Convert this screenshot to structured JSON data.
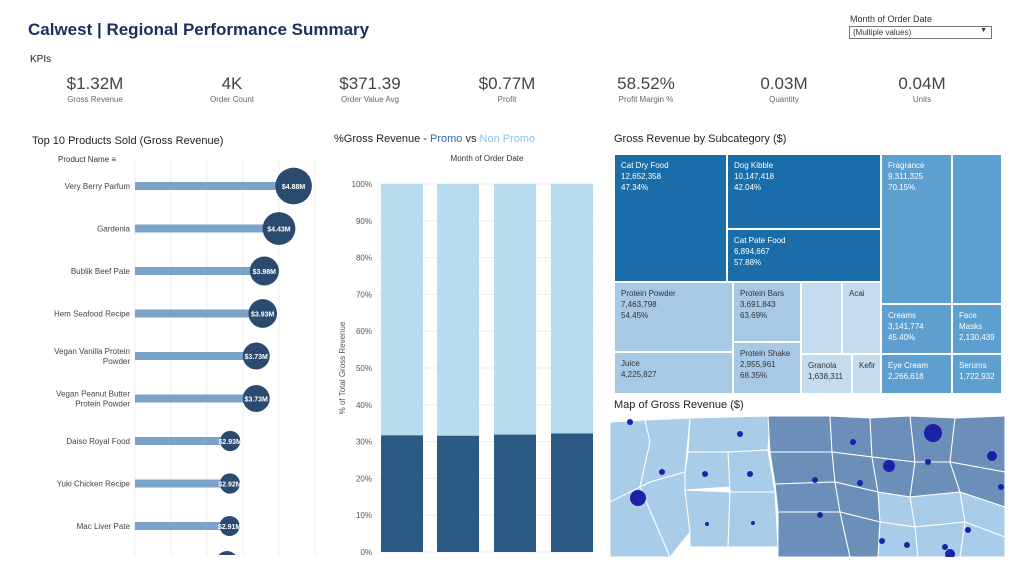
{
  "header": {
    "title": "Calwest | Regional Performance Summary",
    "filter_label": "Month of Order Date",
    "filter_value": "(Multiple values)",
    "kpis_heading": "KPIs"
  },
  "kpis": [
    {
      "value": "$1.32M",
      "label": "Gross Revenue"
    },
    {
      "value": "4K",
      "label": "Order Count"
    },
    {
      "value": "$371.39",
      "label": "Order Value Avg"
    },
    {
      "value": "$0.77M",
      "label": "Profit"
    },
    {
      "value": "58.52%",
      "label": "Profit Margin %"
    },
    {
      "value": "0.03M",
      "label": "Quantity"
    },
    {
      "value": "0.04M",
      "label": "Units"
    }
  ],
  "top_products": {
    "title": "Top 10 Products Sold (Gross Revenue)",
    "column_header": "Product Name",
    "colors": {
      "bar": "#7ba2c9",
      "dot": "#2b4a6f"
    },
    "chart_data": {
      "type": "bar",
      "orientation": "horizontal",
      "categories": [
        "Very Berry Parfum",
        "Gardenia",
        "Bublik Beef Pate",
        "Hem Seafood Recipe",
        "Vegan Vanilla Protein Powder",
        "Vegan Peanut Butter Protein Powder",
        "Daiso Royal Food",
        "Yuki Chicken Recipe",
        "Mac Liver Pate"
      ],
      "display_lines": [
        [
          "Very Berry Parfum"
        ],
        [
          "Gardenia"
        ],
        [
          "Bublik Beef Pate"
        ],
        [
          "Hem Seafood Recipe"
        ],
        [
          "Vegan Vanilla Protein",
          "Powder"
        ],
        [
          "Vegan Peanut Butter",
          "Protein Powder"
        ],
        [
          "Daiso Royal Food"
        ],
        [
          "Yuki Chicken Recipe"
        ],
        [
          "Mac Liver Pate"
        ]
      ],
      "values": [
        4.88,
        4.43,
        3.98,
        3.93,
        3.73,
        3.73,
        2.93,
        2.92,
        2.91
      ],
      "labels": [
        "$4.88M",
        "$4.43M",
        "$3.98M",
        "$3.93M",
        "$3.73M",
        "$3.73M",
        "$2.93M",
        "$2.92M",
        "$2.91M"
      ]
    }
  },
  "promo": {
    "title_prefix": "%Gross Revenue - ",
    "promo_word": "Promo",
    "vs_word": " vs ",
    "nonpromo_word": "Non Promo",
    "colors": {
      "promo": "#2b5a85",
      "non_promo": "#b8dcef",
      "promo_text": "#2b6cb0",
      "nonpromo_text": "#8ec3e6"
    },
    "chart_data": {
      "type": "bar",
      "stacked": true,
      "title": "Month of Order Date",
      "ylabel": "% of Total Gross Revenue",
      "ylim": [
        0,
        100
      ],
      "yticks": [
        "0%",
        "10%",
        "20%",
        "30%",
        "40%",
        "50%",
        "60%",
        "70%",
        "80%",
        "90%",
        "100%"
      ],
      "series": [
        {
          "name": "Promo",
          "values": [
            31.7,
            31.6,
            31.9,
            32.2
          ]
        },
        {
          "name": "Non Promo",
          "values": [
            68.3,
            68.4,
            68.1,
            67.8
          ]
        }
      ]
    }
  },
  "treemap": {
    "title": "Gross Revenue by Subcategory ($)",
    "cells": [
      {
        "name": "Cat Dry Food",
        "value": "12,652,358",
        "pct": "47.34%"
      },
      {
        "name": "Dog Kibble",
        "value": "10,147,418",
        "pct": "42.04%"
      },
      {
        "name": "Cat Pate Food",
        "value": "6,894,667",
        "pct": "57.88%"
      },
      {
        "name": "Fragrance",
        "value": "9,311,325",
        "pct": "70.15%"
      },
      {
        "name": "Protein Powder",
        "value": "7,463,798",
        "pct": "54.45%"
      },
      {
        "name": "Protein Bars",
        "value": "3,691,843",
        "pct": "63.69%"
      },
      {
        "name": "Acai",
        "value": "",
        "pct": ""
      },
      {
        "name": "Juice",
        "value": "4,225,827",
        "pct": ""
      },
      {
        "name": "Protein Shake",
        "value": "2,955,961",
        "pct": "68.35%"
      },
      {
        "name": "Granola",
        "value": "1,638,311",
        "pct": ""
      },
      {
        "name": "Kefir",
        "value": "",
        "pct": ""
      },
      {
        "name": "Creams",
        "value": "3,141,774",
        "pct": "45.40%"
      },
      {
        "name": "Face Masks",
        "value": "2,130,439",
        "pct": ""
      },
      {
        "name": "Eye Cream",
        "value": "2,266,618",
        "pct": ""
      },
      {
        "name": "Serums",
        "value": "1,722,932",
        "pct": ""
      }
    ]
  },
  "map": {
    "title": "Map of Gross Revenue ($)",
    "colors": {
      "light": "#a9cde9",
      "mid": "#6b8fb8",
      "dot": "#1c22a8",
      "border": "#ffffff"
    }
  }
}
